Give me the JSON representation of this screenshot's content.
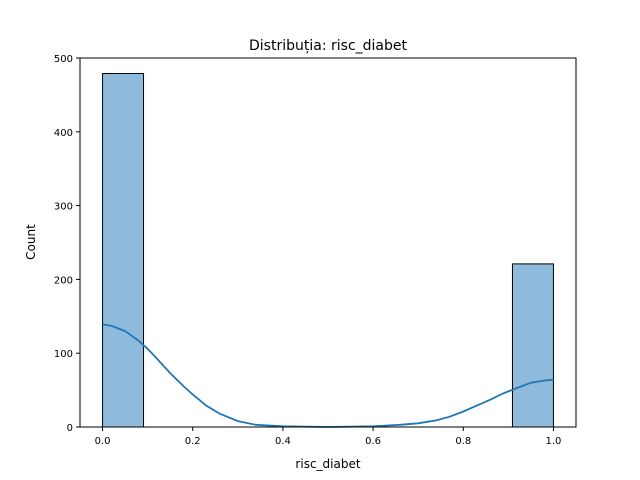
{
  "chart_data": {
    "type": "bar",
    "title": "Distribuția: risc_diabet",
    "xlabel": "risc_diabet",
    "ylabel": "Count",
    "xlim": [
      -0.05,
      1.05
    ],
    "ylim": [
      0,
      500
    ],
    "xticks": [
      "0.0",
      "0.2",
      "0.4",
      "0.6",
      "0.8",
      "1.0"
    ],
    "yticks": [
      "0",
      "100",
      "200",
      "300",
      "400",
      "500"
    ],
    "bins": [
      {
        "x0": 0.0,
        "x1": 0.0909,
        "count": 479
      },
      {
        "x0": 0.9091,
        "x1": 1.0,
        "count": 221
      }
    ],
    "kde": {
      "x": [
        0.0,
        0.02,
        0.05,
        0.08,
        0.1,
        0.12,
        0.15,
        0.18,
        0.2,
        0.23,
        0.26,
        0.3,
        0.34,
        0.4,
        0.5,
        0.6,
        0.66,
        0.7,
        0.74,
        0.77,
        0.8,
        0.83,
        0.86,
        0.89,
        0.92,
        0.95,
        0.98,
        1.0
      ],
      "y": [
        139,
        137,
        130,
        117,
        106,
        93,
        73,
        55,
        44,
        29,
        18,
        8,
        3,
        1,
        0,
        1,
        3,
        5,
        9,
        14,
        21,
        29,
        37,
        46,
        53,
        60,
        63,
        64
      ]
    },
    "bar_color": "#8ebbdc",
    "line_color": "#1f77b4",
    "grid": false,
    "legend": "none"
  }
}
